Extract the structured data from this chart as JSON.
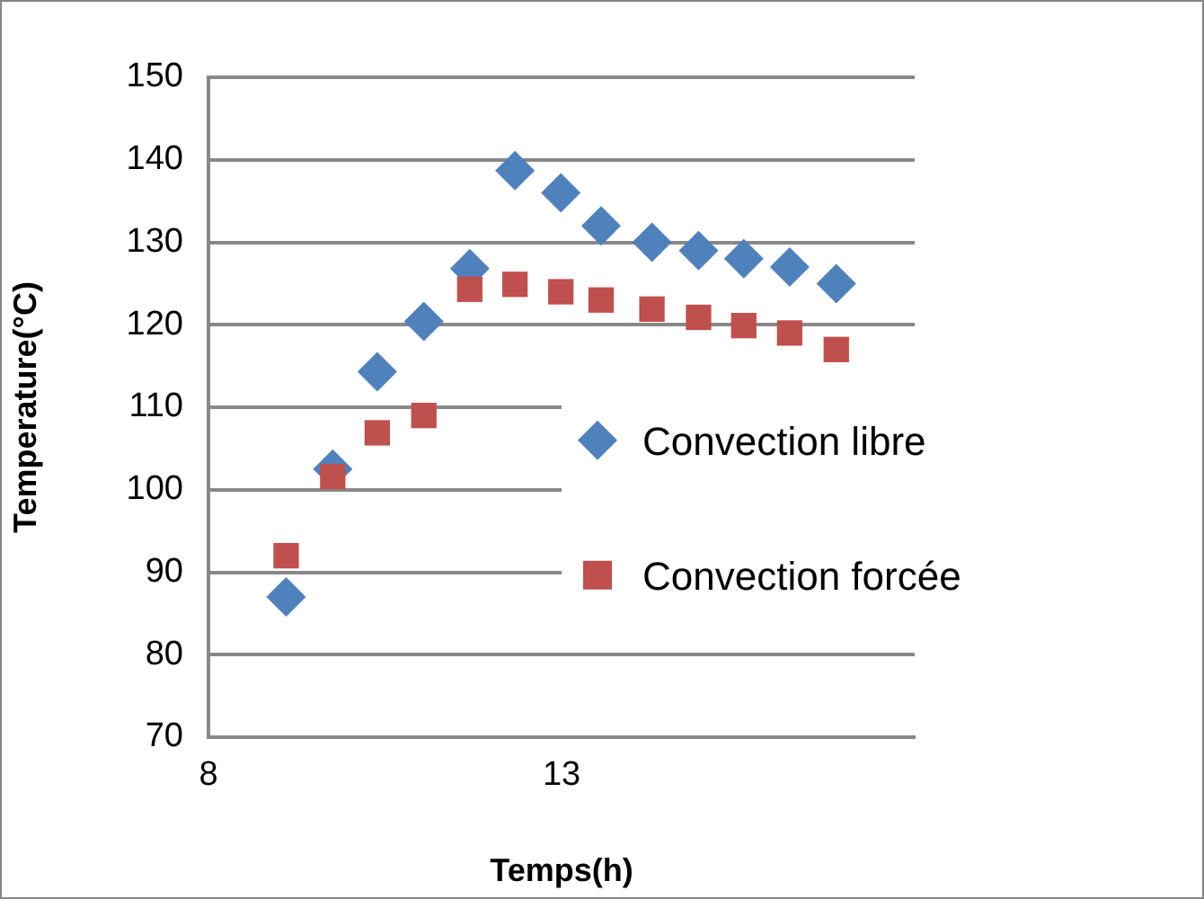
{
  "chart_data": {
    "type": "scatter",
    "xlabel": "Temps(h)",
    "ylabel": "Temperature(°C)",
    "xlim": [
      8,
      18
    ],
    "xticks": [
      8,
      13
    ],
    "ylim": [
      70,
      150
    ],
    "yticks": [
      70,
      80,
      90,
      100,
      110,
      120,
      130,
      140,
      150
    ],
    "grid": "y",
    "legend": "right",
    "series": [
      {
        "name": "Convection libre",
        "color": "#4f81bd",
        "marker": "diamond",
        "x": [
          9.1,
          9.76,
          10.39,
          11.05,
          11.7,
          12.34,
          12.99,
          13.56,
          14.28,
          14.94,
          15.58,
          16.23,
          16.89
        ],
        "values": [
          87,
          102.5,
          114.3,
          120.4,
          126.8,
          138.7,
          136,
          132,
          130,
          129,
          128,
          127,
          125
        ]
      },
      {
        "name": "Convection forcée",
        "color": "#c0504d",
        "marker": "square",
        "x": [
          9.1,
          9.76,
          10.39,
          11.05,
          11.7,
          12.34,
          12.99,
          13.56,
          14.28,
          14.94,
          15.58,
          16.23,
          16.89
        ],
        "values": [
          92,
          101.6,
          106.9,
          109,
          124.3,
          124.9,
          124,
          123,
          121.9,
          120.9,
          119.9,
          119,
          117
        ]
      }
    ]
  }
}
